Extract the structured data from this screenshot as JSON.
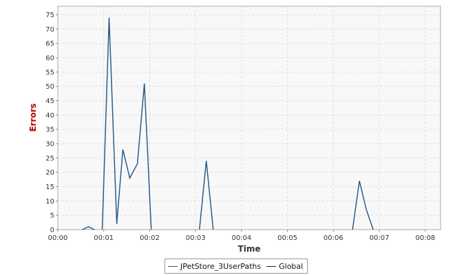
{
  "chart_data": {
    "type": "line",
    "xlabel": "Time",
    "ylabel": "Errors",
    "xlim": [
      0,
      500
    ],
    "ylim": [
      0,
      78
    ],
    "x_ticks": [
      {
        "value": 0,
        "label": "00:00"
      },
      {
        "value": 60,
        "label": "00:01"
      },
      {
        "value": 120,
        "label": "00:02"
      },
      {
        "value": 180,
        "label": "00:03"
      },
      {
        "value": 240,
        "label": "00:04"
      },
      {
        "value": 300,
        "label": "00:05"
      },
      {
        "value": 360,
        "label": "00:06"
      },
      {
        "value": 420,
        "label": "00:07"
      },
      {
        "value": 480,
        "label": "00:08"
      }
    ],
    "y_ticks": [
      0,
      5,
      10,
      15,
      20,
      25,
      30,
      35,
      40,
      45,
      50,
      55,
      60,
      65,
      70,
      75
    ],
    "grid": true,
    "legend_position": "bottom",
    "series": [
      {
        "name": "JPetStore_3UserPaths",
        "color": "#2a5b8f",
        "segments": [
          [
            [
              32,
              0
            ],
            [
              40,
              1
            ],
            [
              48,
              0
            ]
          ],
          [
            [
              58,
              0
            ],
            [
              67,
              74
            ],
            [
              77,
              2
            ],
            [
              85,
              28
            ],
            [
              94,
              18
            ],
            [
              104,
              23
            ],
            [
              113,
              51
            ],
            [
              122,
              0
            ]
          ],
          [
            [
              185,
              0
            ],
            [
              194,
              24
            ],
            [
              203,
              0
            ]
          ],
          [
            [
              385,
              0
            ],
            [
              394,
              17
            ],
            [
              403,
              7
            ],
            [
              412,
              0
            ]
          ]
        ]
      },
      {
        "name": "Global",
        "color": "#1a2130",
        "segments": []
      }
    ]
  }
}
